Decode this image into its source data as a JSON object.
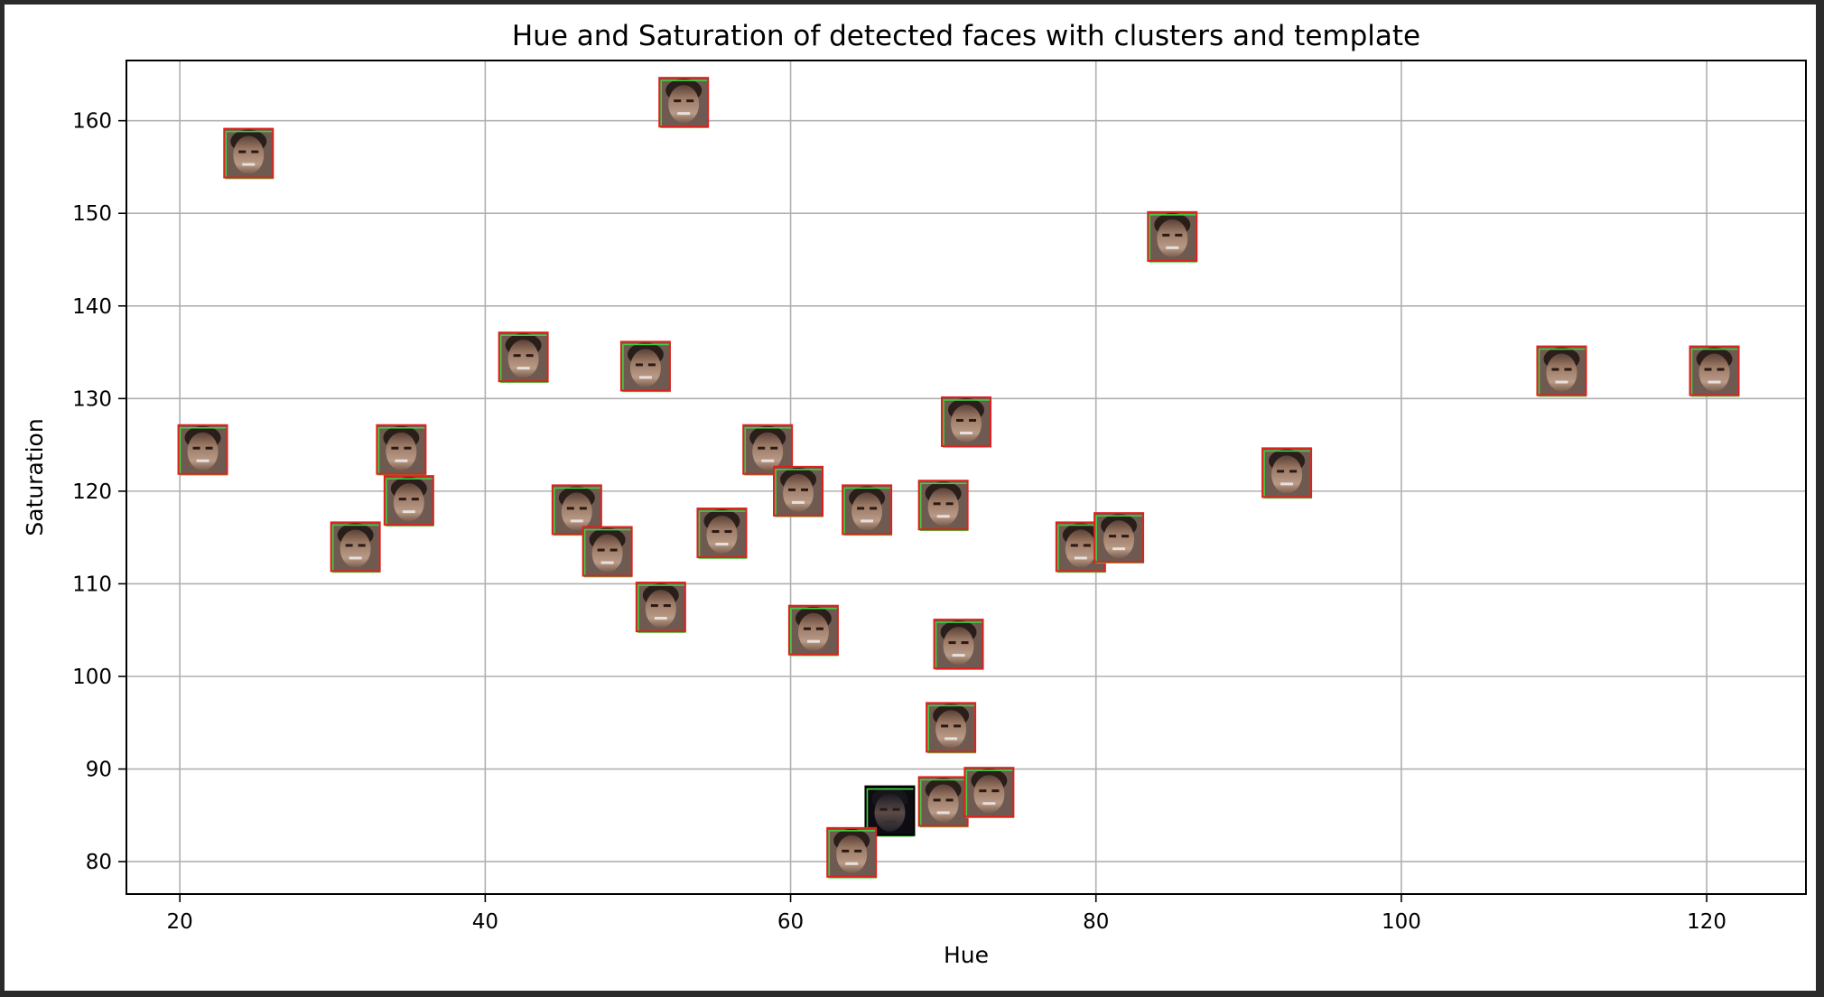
{
  "chart_data": {
    "type": "scatter",
    "title": "Hue and Saturation of detected faces with clusters and template",
    "xlabel": "Hue",
    "ylabel": "Saturation",
    "xlim": [
      16.5,
      126.5
    ],
    "ylim": [
      76.5,
      166.5
    ],
    "xticks": [
      20,
      40,
      60,
      80,
      100,
      120
    ],
    "yticks": [
      80,
      90,
      100,
      110,
      120,
      130,
      140,
      150,
      160
    ],
    "grid": true,
    "marker": "face-thumbnail",
    "points": [
      {
        "x": 24.5,
        "y": 156.5
      },
      {
        "x": 53.0,
        "y": 162.0
      },
      {
        "x": 85.0,
        "y": 147.5
      },
      {
        "x": 42.5,
        "y": 134.5
      },
      {
        "x": 50.5,
        "y": 133.5
      },
      {
        "x": 110.5,
        "y": 133.0
      },
      {
        "x": 120.5,
        "y": 133.0
      },
      {
        "x": 21.5,
        "y": 124.5
      },
      {
        "x": 34.5,
        "y": 124.5
      },
      {
        "x": 58.5,
        "y": 124.5
      },
      {
        "x": 71.5,
        "y": 127.5
      },
      {
        "x": 92.5,
        "y": 122.0
      },
      {
        "x": 35.0,
        "y": 119.0
      },
      {
        "x": 46.0,
        "y": 118.0
      },
      {
        "x": 60.5,
        "y": 120.0
      },
      {
        "x": 65.0,
        "y": 118.0
      },
      {
        "x": 70.0,
        "y": 118.5
      },
      {
        "x": 55.5,
        "y": 115.5
      },
      {
        "x": 31.5,
        "y": 114.0
      },
      {
        "x": 48.0,
        "y": 113.5
      },
      {
        "x": 79.0,
        "y": 114.0
      },
      {
        "x": 81.5,
        "y": 115.0
      },
      {
        "x": 51.5,
        "y": 107.5
      },
      {
        "x": 61.5,
        "y": 105.0
      },
      {
        "x": 71.0,
        "y": 103.5
      },
      {
        "x": 70.5,
        "y": 94.5
      },
      {
        "x": 66.5,
        "y": 85.5
      },
      {
        "x": 70.0,
        "y": 86.5
      },
      {
        "x": 73.0,
        "y": 87.5
      },
      {
        "x": 64.0,
        "y": 81.0
      }
    ],
    "colors": {
      "grid": "#b0b0b0",
      "axes": "#000000",
      "box_red": "#e02020",
      "box_green": "#40d040"
    }
  }
}
